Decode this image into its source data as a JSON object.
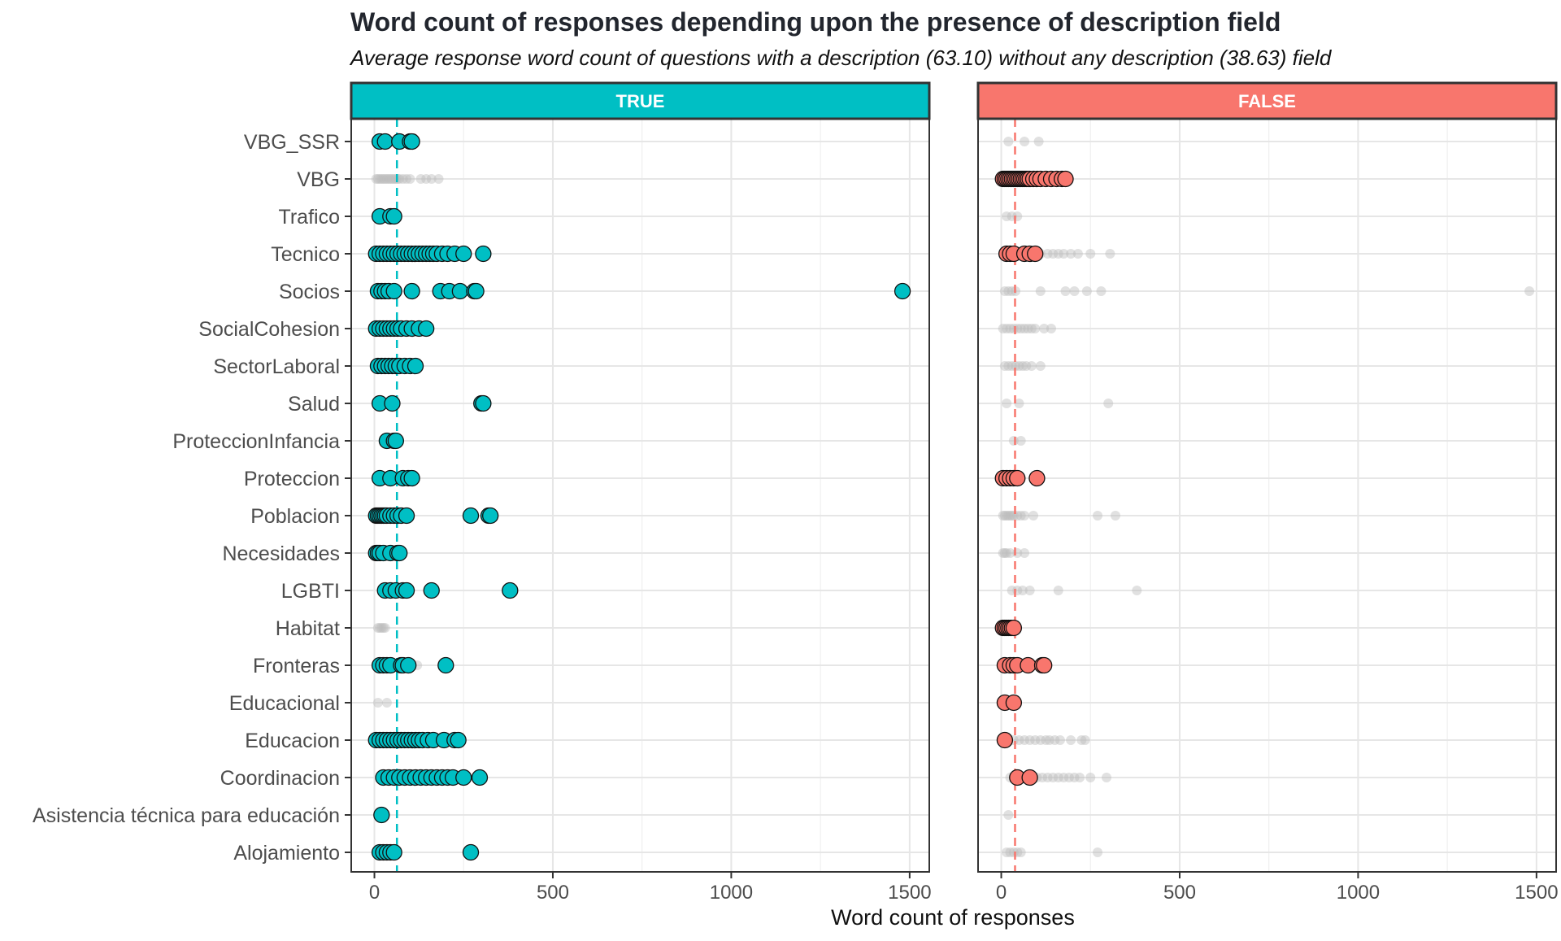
{
  "chart_data": {
    "type": "scatter",
    "title": "Word count of responses depending upon the presence of description field",
    "subtitle": "Average response word count of questions with a description (63.10) without any description (38.63) field",
    "xlabel": "Word count of responses",
    "ylabel": "",
    "xlim": [
      -65,
      1555
    ],
    "x_ticks": [
      0,
      500,
      1000,
      1500
    ],
    "x_tick_labels": [
      "0",
      "500",
      "1000",
      "1500"
    ],
    "grid": true,
    "legend": "none",
    "categories": [
      "VBG_SSR",
      "VBG",
      "Trafico",
      "Tecnico",
      "Socios",
      "SocialCohesion",
      "SectorLaboral",
      "Salud",
      "ProteccionInfancia",
      "Proteccion",
      "Poblacion",
      "Necesidades",
      "LGBTI",
      "Habitat",
      "Fronteras",
      "Educacional",
      "Educacion",
      "Coordinacion",
      "Asistencia técnica para educación",
      "Alojamiento"
    ],
    "panels": [
      {
        "label": "TRUE",
        "color": "#00BFC4",
        "mean": 63.1,
        "points": {
          "VBG_SSR": [
            15,
            30,
            70,
            100,
            105
          ],
          "Trafico": [
            15,
            45,
            55
          ],
          "Tecnico": [
            5,
            15,
            25,
            35,
            45,
            55,
            65,
            75,
            85,
            95,
            105,
            115,
            125,
            135,
            145,
            155,
            165,
            175,
            190,
            205,
            225,
            250,
            305
          ],
          "Socios": [
            10,
            20,
            30,
            40,
            55,
            105,
            185,
            210,
            240,
            280,
            285,
            1480
          ],
          "SocialCohesion": [
            5,
            15,
            25,
            35,
            45,
            55,
            65,
            75,
            90,
            105,
            125,
            145
          ],
          "SectorLaboral": [
            10,
            20,
            30,
            40,
            50,
            60,
            70,
            85,
            100,
            115
          ],
          "Salud": [
            15,
            50,
            300,
            305
          ],
          "ProteccionInfancia": [
            35,
            55,
            60
          ],
          "Proteccion": [
            15,
            45,
            80,
            95,
            105
          ],
          "Poblacion": [
            5,
            10,
            15,
            20,
            25,
            30,
            35,
            45,
            55,
            65,
            75,
            90,
            270,
            320,
            325
          ],
          "Necesidades": [
            5,
            10,
            15,
            25,
            45,
            65,
            70
          ],
          "LGBTI": [
            30,
            45,
            60,
            80,
            90,
            160,
            380
          ],
          "Fronteras": [
            15,
            25,
            35,
            45,
            75,
            80,
            95,
            200
          ],
          "Educacion": [
            5,
            15,
            25,
            35,
            45,
            55,
            65,
            75,
            85,
            95,
            105,
            115,
            125,
            135,
            150,
            165,
            195,
            225,
            235
          ],
          "Coordinacion": [
            25,
            40,
            55,
            70,
            85,
            100,
            115,
            130,
            145,
            160,
            175,
            190,
            205,
            220,
            250,
            295
          ],
          "Asistencia técnica para educación": [
            20
          ],
          "Alojamiento": [
            15,
            25,
            35,
            45,
            55,
            270
          ]
        },
        "faded_points": {
          "VBG": [
            5,
            10,
            15,
            20,
            25,
            30,
            35,
            40,
            45,
            50,
            55,
            60,
            65,
            70,
            80,
            90,
            100,
            130,
            145,
            160,
            180
          ],
          "Habitat": [
            10,
            15,
            20,
            25,
            30
          ],
          "Educacional": [
            10,
            35
          ],
          "Fronteras": [
            120
          ]
        }
      },
      {
        "label": "FALSE",
        "color": "#F8766D",
        "mean": 38.63,
        "points": {
          "VBG": [
            5,
            10,
            15,
            20,
            25,
            30,
            35,
            40,
            45,
            50,
            55,
            60,
            65,
            70,
            75,
            80,
            90,
            100,
            110,
            125,
            140,
            155,
            170,
            180
          ],
          "Tecnico": [
            15,
            25,
            35,
            65,
            80,
            95
          ],
          "Proteccion": [
            5,
            15,
            25,
            35,
            45,
            100
          ],
          "Habitat": [
            5,
            10,
            15,
            20,
            25,
            30,
            35
          ],
          "Fronteras": [
            10,
            25,
            35,
            45,
            75,
            115,
            120
          ],
          "Educacional": [
            10,
            35
          ],
          "Educacion": [
            10
          ],
          "Coordinacion": [
            45,
            80
          ]
        },
        "faded_points": {
          "VBG_SSR": [
            20,
            65,
            105
          ],
          "Trafico": [
            15,
            30,
            45
          ],
          "Tecnico": [
            110,
            130,
            145,
            160,
            175,
            195,
            215,
            250,
            305
          ],
          "Socios": [
            10,
            20,
            30,
            40,
            110,
            180,
            205,
            240,
            280,
            1480
          ],
          "SocialCohesion": [
            5,
            15,
            25,
            35,
            45,
            55,
            65,
            75,
            85,
            95,
            120,
            140
          ],
          "SectorLaboral": [
            10,
            20,
            30,
            40,
            50,
            60,
            70,
            85,
            110
          ],
          "Salud": [
            15,
            50,
            300
          ],
          "ProteccionInfancia": [
            35,
            55
          ],
          "Poblacion": [
            5,
            10,
            15,
            20,
            25,
            30,
            35,
            45,
            55,
            65,
            90,
            270,
            320
          ],
          "Necesidades": [
            5,
            10,
            15,
            25,
            45,
            65
          ],
          "LGBTI": [
            30,
            45,
            60,
            80,
            160,
            380
          ],
          "Educacion": [
            35,
            50,
            65,
            80,
            95,
            110,
            125,
            135,
            150,
            165,
            195,
            225,
            235
          ],
          "Coordinacion": [
            25,
            55,
            70,
            100,
            115,
            130,
            145,
            160,
            175,
            190,
            205,
            220,
            250,
            295
          ],
          "Asistencia técnica para educación": [
            20
          ],
          "Alojamiento": [
            15,
            25,
            35,
            45,
            55,
            270
          ]
        }
      }
    ]
  }
}
